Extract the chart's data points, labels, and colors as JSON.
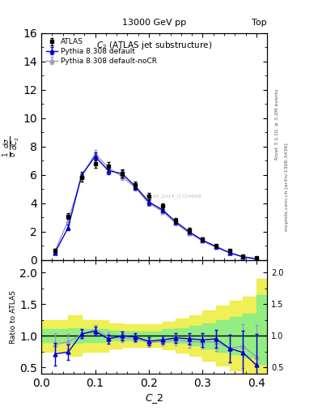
{
  "header_left": "13000 GeV pp",
  "header_right": "Top",
  "title_main": "C$_2$ (ATLAS jet substructure)",
  "watermark": "ATLAS_2019_I1724098",
  "right_label1": "Rivet 3.1.10, ≥ 3.2M events",
  "right_label2": "mcplots.cern.ch [arXiv:1306.3436]",
  "atlas_x": [
    0.025,
    0.05,
    0.075,
    0.1,
    0.125,
    0.15,
    0.175,
    0.2,
    0.225,
    0.25,
    0.275,
    0.3,
    0.325,
    0.35,
    0.375,
    0.4
  ],
  "atlas_y": [
    0.7,
    3.1,
    5.8,
    6.8,
    6.65,
    6.1,
    5.3,
    4.5,
    3.8,
    2.8,
    2.1,
    1.5,
    1.0,
    0.65,
    0.3,
    0.15
  ],
  "atlas_yerr": [
    0.12,
    0.2,
    0.25,
    0.3,
    0.28,
    0.28,
    0.25,
    0.22,
    0.2,
    0.18,
    0.15,
    0.12,
    0.1,
    0.08,
    0.05,
    0.03
  ],
  "py_def_x": [
    0.025,
    0.05,
    0.075,
    0.1,
    0.125,
    0.15,
    0.175,
    0.2,
    0.225,
    0.25,
    0.275,
    0.3,
    0.325,
    0.35,
    0.375,
    0.4
  ],
  "py_def_y": [
    0.5,
    2.3,
    6.0,
    7.3,
    6.3,
    6.1,
    5.2,
    4.1,
    3.55,
    2.7,
    2.0,
    1.4,
    0.95,
    0.52,
    0.22,
    0.08
  ],
  "py_def_yerr": [
    0.08,
    0.18,
    0.22,
    0.28,
    0.25,
    0.25,
    0.22,
    0.2,
    0.18,
    0.16,
    0.13,
    0.1,
    0.08,
    0.06,
    0.04,
    0.02
  ],
  "py_nocr_x": [
    0.025,
    0.05,
    0.075,
    0.1,
    0.125,
    0.15,
    0.175,
    0.2,
    0.225,
    0.25,
    0.275,
    0.3,
    0.325,
    0.35,
    0.375,
    0.4
  ],
  "py_nocr_y": [
    0.6,
    2.8,
    5.9,
    7.5,
    6.5,
    5.9,
    5.1,
    4.0,
    3.45,
    2.6,
    1.9,
    1.35,
    0.9,
    0.52,
    0.25,
    0.1
  ],
  "py_nocr_yerr": [
    0.08,
    0.18,
    0.22,
    0.28,
    0.25,
    0.25,
    0.22,
    0.2,
    0.18,
    0.16,
    0.13,
    0.1,
    0.08,
    0.06,
    0.04,
    0.02
  ],
  "ratio_def_y": [
    0.71,
    0.74,
    1.03,
    1.07,
    0.947,
    1.0,
    0.981,
    0.911,
    0.934,
    0.964,
    0.952,
    0.933,
    0.95,
    0.8,
    0.733,
    0.533
  ],
  "ratio_def_yerr": [
    0.18,
    0.12,
    0.07,
    0.07,
    0.07,
    0.07,
    0.065,
    0.065,
    0.065,
    0.08,
    0.09,
    0.11,
    0.14,
    0.22,
    0.35,
    0.5
  ],
  "ratio_nocr_y": [
    0.857,
    0.903,
    1.017,
    1.103,
    0.977,
    0.967,
    0.962,
    0.889,
    0.908,
    0.929,
    0.905,
    0.9,
    0.9,
    0.8,
    0.833,
    0.667
  ],
  "ratio_nocr_yerr": [
    0.18,
    0.12,
    0.07,
    0.07,
    0.07,
    0.07,
    0.065,
    0.065,
    0.065,
    0.08,
    0.09,
    0.11,
    0.14,
    0.22,
    0.35,
    0.5
  ],
  "yband_x": [
    0.0,
    0.025,
    0.05,
    0.075,
    0.1,
    0.125,
    0.15,
    0.175,
    0.2,
    0.225,
    0.25,
    0.275,
    0.3,
    0.325,
    0.35,
    0.375,
    0.4,
    0.42
  ],
  "green_lo": [
    0.9,
    0.9,
    0.88,
    0.9,
    0.9,
    0.92,
    0.93,
    0.93,
    0.93,
    0.9,
    0.88,
    0.85,
    0.8,
    0.75,
    0.7,
    0.65,
    0.55,
    0.55
  ],
  "green_hi": [
    1.1,
    1.1,
    1.12,
    1.1,
    1.1,
    1.08,
    1.07,
    1.07,
    1.07,
    1.1,
    1.12,
    1.15,
    1.2,
    1.25,
    1.3,
    1.35,
    1.65,
    1.65
  ],
  "yellow_lo": [
    0.75,
    0.75,
    0.68,
    0.75,
    0.75,
    0.8,
    0.82,
    0.82,
    0.82,
    0.78,
    0.73,
    0.68,
    0.6,
    0.52,
    0.45,
    0.38,
    0.28,
    0.28
  ],
  "yellow_hi": [
    1.25,
    1.25,
    1.32,
    1.25,
    1.25,
    1.2,
    1.18,
    1.18,
    1.18,
    1.22,
    1.27,
    1.32,
    1.4,
    1.48,
    1.55,
    1.62,
    1.9,
    1.9
  ],
  "atlas_color": "#000000",
  "py_def_color": "#0000cc",
  "py_nocr_color": "#9999bb",
  "green_color": "#88ee88",
  "yellow_color": "#eeee44",
  "ylim_main": [
    0,
    16
  ],
  "ylim_ratio": [
    0.4,
    2.2
  ],
  "xlim": [
    0.0,
    0.42
  ],
  "yticks_main": [
    0,
    2,
    4,
    6,
    8,
    10,
    12,
    14,
    16
  ],
  "yticks_ratio": [
    0.5,
    1.0,
    1.5,
    2.0
  ]
}
